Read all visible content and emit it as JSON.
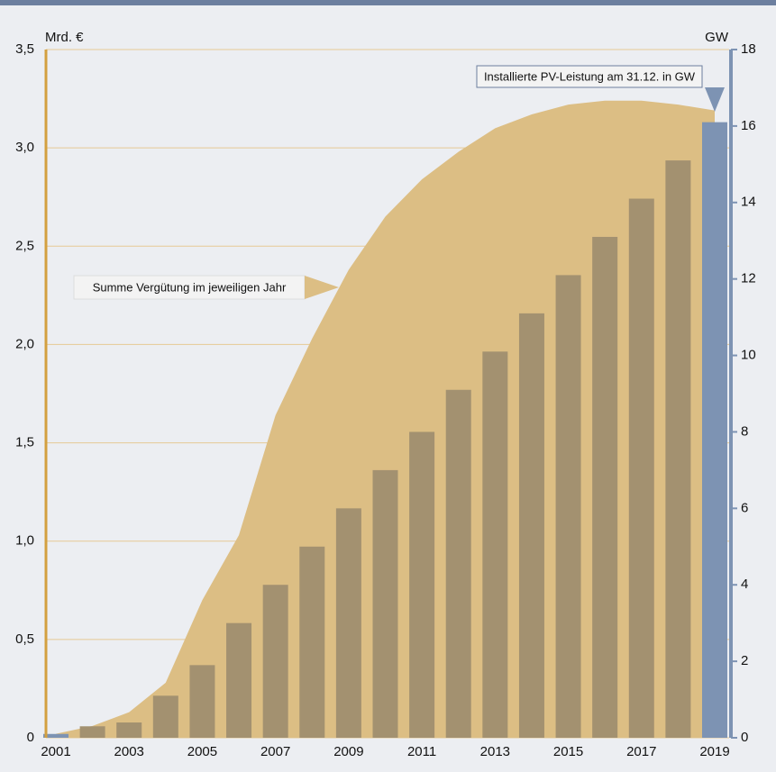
{
  "chart_data": {
    "type": "combo",
    "y_label": "Mrd. €",
    "y2_label": "GW",
    "annotations": [
      "Summe Vergütung im jeweiligen Jahr",
      "Installierte PV-Leistung am 31.12. in GW"
    ],
    "categories": [
      "2001",
      null,
      "2003",
      null,
      "2005",
      null,
      "2007",
      null,
      "2009",
      null,
      "2011",
      null,
      "2013",
      null,
      "2015",
      null,
      "2017",
      null,
      "2019"
    ],
    "series": [
      {
        "type": "area",
        "color": "#dcbe84",
        "values": [
          0.02,
          0.06,
          0.13,
          0.28,
          0.7,
          1.03,
          1.64,
          2.03,
          2.38,
          2.65,
          2.84,
          2.98,
          3.1,
          3.17,
          3.22,
          3.24,
          3.24,
          3.22,
          3.19
        ]
      },
      {
        "type": "bar",
        "axis": "y2",
        "colors": [
          "#7d93b3",
          "#a39170",
          "#a39170",
          "#a39170",
          "#a39170",
          "#a39170",
          "#a39170",
          "#a39170",
          "#a39170",
          "#a39170",
          "#a39170",
          "#a39170",
          "#a39170",
          "#a39170",
          "#a39170",
          "#a39170",
          "#a39170",
          "#a39170",
          "#7d93b3"
        ],
        "values": [
          0.1,
          0.3,
          0.4,
          1.1,
          1.9,
          3.0,
          4.0,
          5.0,
          6.0,
          7.0,
          8.0,
          9.1,
          10.1,
          11.1,
          12.1,
          13.1,
          14.1,
          15.1,
          16.1
        ]
      }
    ],
    "ylim": [
      0,
      3.5
    ],
    "yticks": [
      0,
      {
        "value": 0.5,
        "label": "0,5"
      },
      {
        "value": 1.0,
        "label": "1,0"
      },
      {
        "value": 1.5,
        "label": "1,5"
      },
      {
        "value": 2.0,
        "label": "2,0"
      },
      {
        "value": 2.5,
        "label": "2,5"
      },
      {
        "value": 3.0,
        "label": "3,0"
      },
      {
        "value": 3.5,
        "label": "3,5"
      }
    ],
    "y2lim": [
      0,
      18
    ],
    "y2ticks": [
      0,
      2,
      4,
      6,
      8,
      10,
      12,
      14,
      16,
      18
    ],
    "grid": true
  }
}
